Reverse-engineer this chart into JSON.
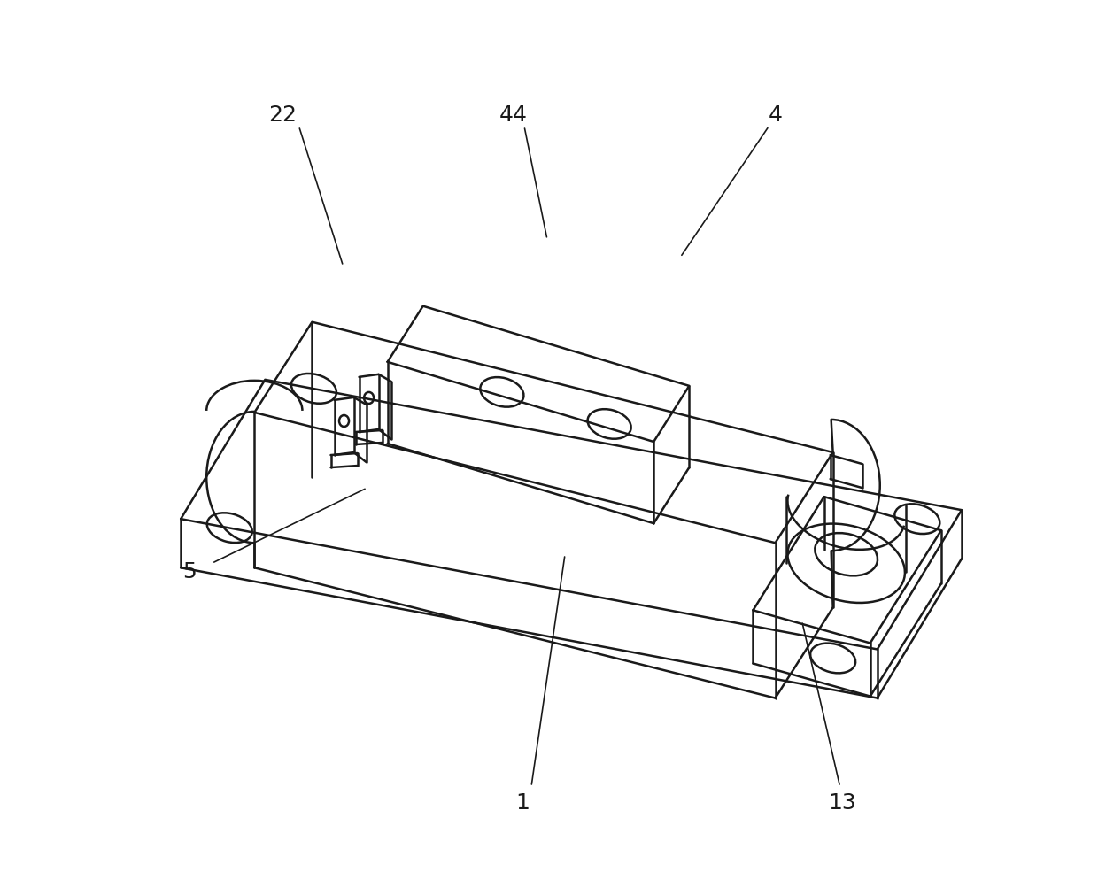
{
  "bg_color": "#ffffff",
  "line_color": "#1a1a1a",
  "lw": 1.8,
  "lw_thin": 1.2,
  "annotations": {
    "22": {
      "label": [
        0.2,
        0.87
      ],
      "p1": [
        0.218,
        0.858
      ],
      "p2": [
        0.268,
        0.7
      ]
    },
    "44": {
      "label": [
        0.46,
        0.87
      ],
      "p1": [
        0.472,
        0.858
      ],
      "p2": [
        0.498,
        0.73
      ]
    },
    "4": {
      "label": [
        0.755,
        0.87
      ],
      "p1": [
        0.748,
        0.858
      ],
      "p2": [
        0.648,
        0.71
      ]
    },
    "5": {
      "label": [
        0.095,
        0.355
      ],
      "p1": [
        0.12,
        0.365
      ],
      "p2": [
        0.295,
        0.45
      ]
    },
    "1": {
      "label": [
        0.47,
        0.095
      ],
      "p1": [
        0.48,
        0.113
      ],
      "p2": [
        0.518,
        0.375
      ]
    },
    "13": {
      "label": [
        0.83,
        0.095
      ],
      "p1": [
        0.828,
        0.113
      ],
      "p2": [
        0.785,
        0.3
      ]
    }
  },
  "label_fontsize": 18,
  "ann_lw": 1.2
}
